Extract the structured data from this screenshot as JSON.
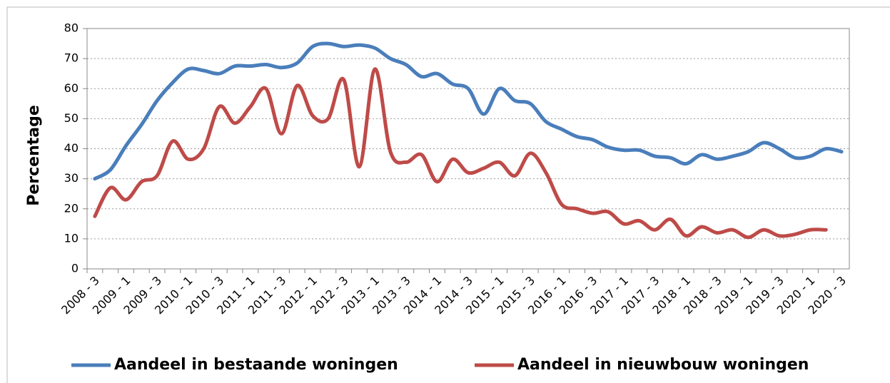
{
  "chart_data": {
    "type": "line",
    "categories": [
      "2008 - 3",
      null,
      "2009 - 1",
      null,
      "2009 - 3",
      null,
      "2010 - 1",
      null,
      "2010 - 3",
      null,
      "2011 - 1",
      null,
      "2011 - 3",
      null,
      "2012 - 1",
      null,
      "2012 - 3",
      null,
      "2013 - 1",
      null,
      "2013 - 3",
      null,
      "2014 - 1",
      null,
      "2014 - 3",
      null,
      "2015 - 1",
      null,
      "2015 - 3",
      null,
      "2016 - 1",
      null,
      "2016 - 3",
      null,
      "2017 - 1",
      null,
      "2017 - 3",
      null,
      "2018 - 1",
      null,
      "2018 - 3",
      null,
      "2019 - 1",
      null,
      "2019 - 3",
      null,
      "2020 - 1",
      null,
      "2020 - 3"
    ],
    "series": [
      {
        "name": "Aandeel in bestaande woningen",
        "color": "#4a7ebb",
        "values": [
          30,
          33,
          41,
          48,
          56,
          62,
          66.5,
          66,
          65,
          67.5,
          67.5,
          68,
          67,
          68.5,
          74,
          75,
          74,
          74.5,
          73.5,
          70,
          68,
          64,
          65,
          61.5,
          60,
          51.5,
          60,
          56,
          55,
          49,
          46.5,
          44,
          43,
          40.5,
          39.5,
          39.5,
          37.5,
          37,
          35,
          38,
          36.5,
          37.5,
          39,
          42,
          40,
          37,
          37.5,
          40,
          39
        ]
      },
      {
        "name": "Aandeel in nieuwbouw woningen",
        "color": "#be4b48",
        "values": [
          17.5,
          27,
          23,
          29,
          31,
          42.5,
          36.5,
          40,
          54,
          48.5,
          54,
          60,
          45,
          61,
          51,
          50,
          63,
          34,
          66.5,
          39,
          35.5,
          38,
          29,
          36.5,
          32,
          33.5,
          35.5,
          31,
          38.5,
          32,
          21.5,
          20,
          18.5,
          19,
          15,
          16,
          13,
          16.5,
          11,
          14,
          12,
          13,
          10.5,
          13,
          11,
          11.5,
          13,
          13,
          null
        ]
      }
    ],
    "y_label": "Percentage",
    "ylim": [
      0,
      80
    ],
    "yticks": [
      0,
      10,
      20,
      30,
      40,
      50,
      60,
      70,
      80
    ],
    "grid": true,
    "legend": "bottom"
  }
}
